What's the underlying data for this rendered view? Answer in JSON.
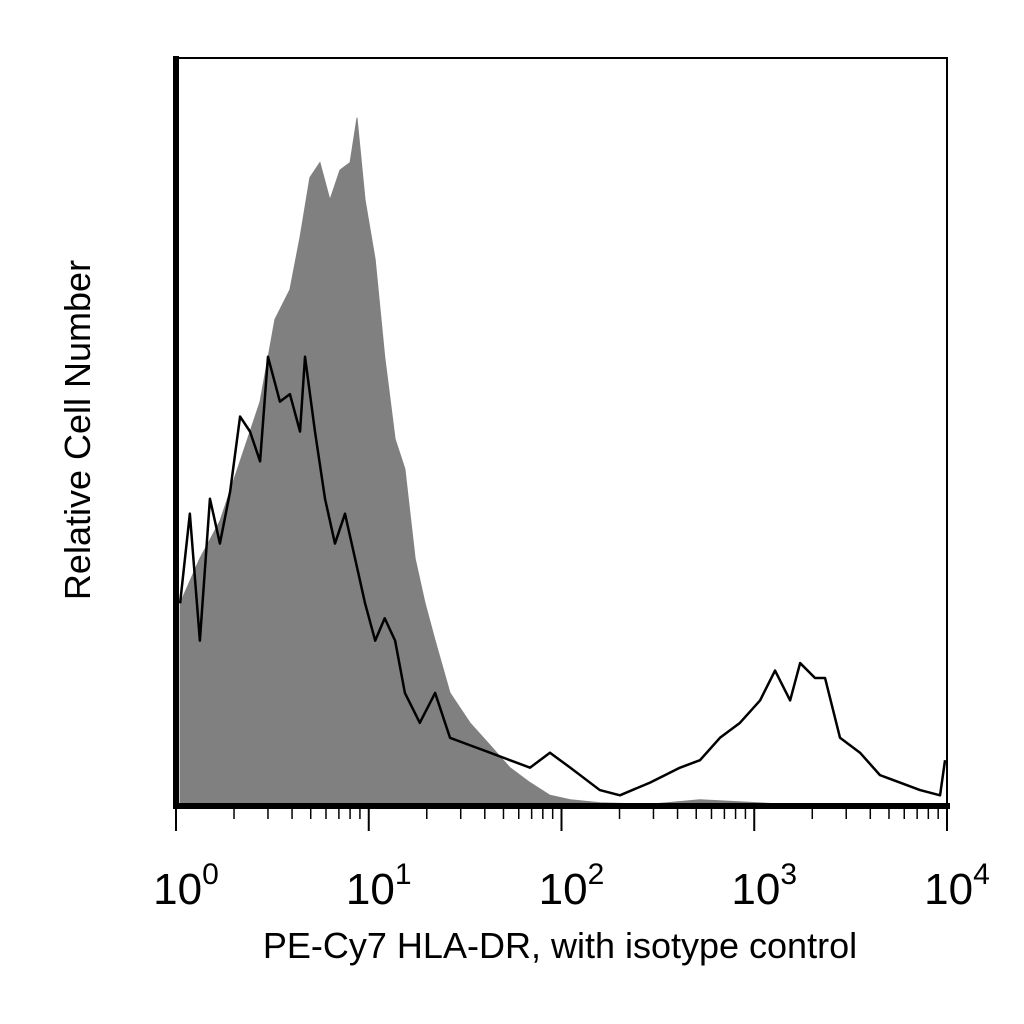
{
  "chart_data": {
    "type": "histogram-overlay",
    "xlabel": "PE-Cy7 HLA-DR, with isotype control",
    "ylabel": "Relative Cell Number",
    "xscale": "log",
    "xlim": [
      1,
      10000
    ],
    "xticks": [
      {
        "value": 1,
        "label": "10^0"
      },
      {
        "value": 10,
        "label": "10^1"
      },
      {
        "value": 100,
        "label": "10^2"
      },
      {
        "value": 1000,
        "label": "10^3"
      },
      {
        "value": 10000,
        "label": "10^4"
      }
    ],
    "minor_xticks": [
      2,
      3,
      4,
      5,
      6,
      7,
      8,
      9,
      20,
      30,
      40,
      50,
      60,
      70,
      80,
      90,
      200,
      300,
      400,
      500,
      600,
      700,
      800,
      900,
      2000,
      3000,
      4000,
      5000,
      6000,
      7000,
      8000,
      9000
    ],
    "ylim": [
      0,
      100
    ],
    "series": [
      {
        "color": "#808080",
        "style": "area",
        "x": [
          1.05,
          1.33,
          1.69,
          2.15,
          2.73,
          3.26,
          3.9,
          4.4,
          4.95,
          5.58,
          6.29,
          7.09,
          8.0,
          8.69,
          9.57,
          10.8,
          12.1,
          13.7,
          15.4,
          17.4,
          19.6,
          22.1,
          26.4,
          33.5,
          42.6,
          54.0,
          68.7,
          87.1,
          111,
          158,
          288,
          523,
          1730,
          10000
        ],
        "values": [
          27,
          33,
          38,
          46,
          54,
          65,
          69,
          76,
          84,
          86,
          81,
          85,
          86,
          92,
          81,
          73,
          60,
          49,
          45,
          33,
          27,
          22,
          15,
          11,
          8,
          5,
          3,
          1.3,
          0.7,
          0.3,
          0.1,
          0.7,
          0,
          0
        ]
      },
      {
        "color": "#000000",
        "style": "line",
        "x": [
          1.05,
          1.18,
          1.33,
          1.5,
          1.69,
          1.91,
          2.15,
          2.42,
          2.73,
          3.0,
          3.46,
          3.9,
          4.4,
          4.67,
          5.26,
          5.93,
          6.68,
          7.53,
          8.49,
          9.57,
          10.8,
          12.1,
          13.7,
          15.4,
          18.4,
          22.1,
          26.4,
          33.5,
          42.6,
          54.0,
          68.7,
          87.1,
          111,
          158,
          201,
          288,
          412,
          523,
          664,
          843,
          1072,
          1282,
          1535,
          1730,
          2067,
          2330,
          2786,
          3538,
          4490,
          5700,
          7244,
          9204,
          9770
        ],
        "values": [
          27,
          39,
          22,
          41,
          35,
          42,
          52,
          50,
          46,
          60,
          54,
          55,
          50,
          60,
          50,
          41,
          35,
          39,
          33,
          27,
          22,
          25,
          22,
          15,
          11,
          15,
          9,
          8,
          7,
          6,
          5,
          7,
          5,
          2,
          1.3,
          3,
          5,
          6,
          9,
          11,
          14,
          18,
          14,
          19,
          17,
          17,
          9,
          7,
          4,
          3,
          2,
          1.3,
          6
        ]
      }
    ]
  }
}
